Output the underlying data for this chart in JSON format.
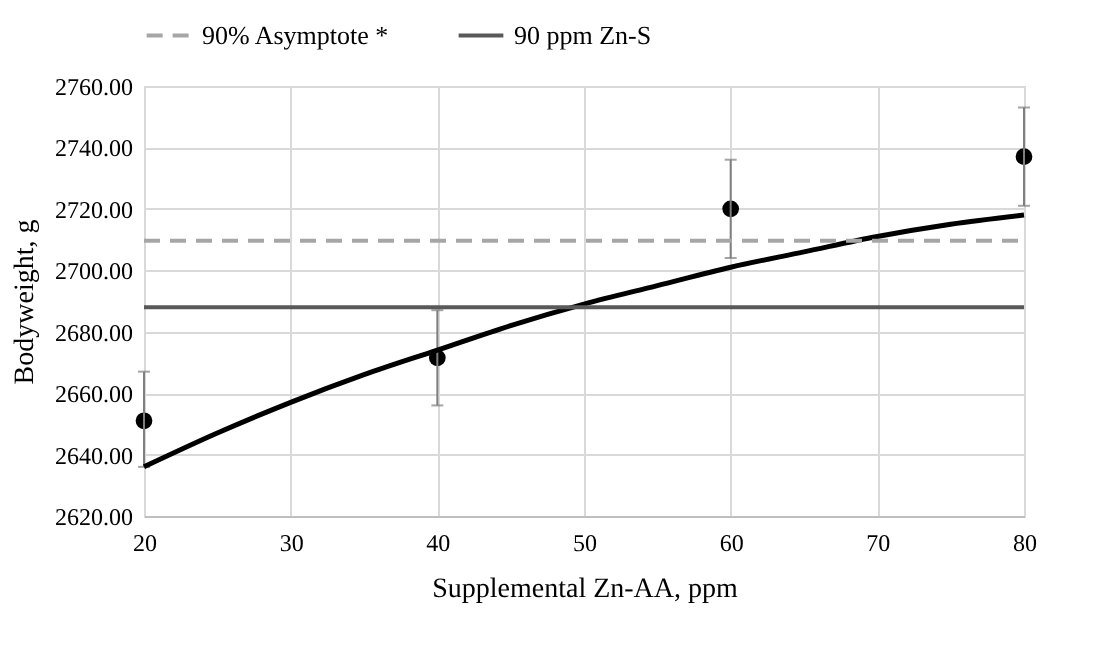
{
  "chart_data": {
    "type": "scatter",
    "xlabel": "Supplemental Zn-AA, ppm",
    "ylabel": "Bodyweight, g",
    "xlim": [
      20,
      80
    ],
    "xticks": [
      20,
      30,
      40,
      50,
      60,
      70,
      80
    ],
    "ylim": [
      2620,
      2760
    ],
    "yticks": [
      {
        "value": 2620,
        "label": "2620.00"
      },
      {
        "value": 2640,
        "label": "2640.00"
      },
      {
        "value": 2660,
        "label": "2660.00"
      },
      {
        "value": 2680,
        "label": "2680.00"
      },
      {
        "value": 2700,
        "label": "2700.00"
      },
      {
        "value": 2720,
        "label": "2720.00"
      },
      {
        "value": 2740,
        "label": "2740.00"
      },
      {
        "value": 2760,
        "label": "2760.00"
      }
    ],
    "grid": true,
    "legend": "top",
    "series": [
      {
        "type": "scatter",
        "color": "#000000",
        "marker": "circle",
        "x": [
          20,
          40,
          60,
          80
        ],
        "values": [
          2651,
          2671.5,
          2720,
          2737
        ],
        "errors": [
          [
            2636,
            2667
          ],
          [
            2656,
            2687
          ],
          [
            2704,
            2736
          ],
          [
            2721,
            2753
          ]
        ]
      },
      {
        "type": "line",
        "color": "#000000",
        "line_style": "solid",
        "x": [
          20,
          25,
          30,
          35,
          40,
          45,
          50,
          55,
          60,
          65,
          70,
          75,
          80
        ],
        "values": [
          2636,
          2647,
          2657,
          2666,
          2674,
          2682,
          2689,
          2695,
          2701,
          2706,
          2711,
          2715,
          2718
        ]
      },
      {
        "type": "line",
        "name": "90% Asymptote *",
        "color": "#a6a6a6",
        "line_style": "dashed",
        "x": [
          20,
          80
        ],
        "values": [
          2709.6,
          2709.6
        ]
      },
      {
        "type": "line",
        "name": "90 ppm Zn-S",
        "color": "#595959",
        "line_style": "solid",
        "x": [
          20,
          80
        ],
        "values": [
          2688,
          2688
        ]
      }
    ]
  }
}
